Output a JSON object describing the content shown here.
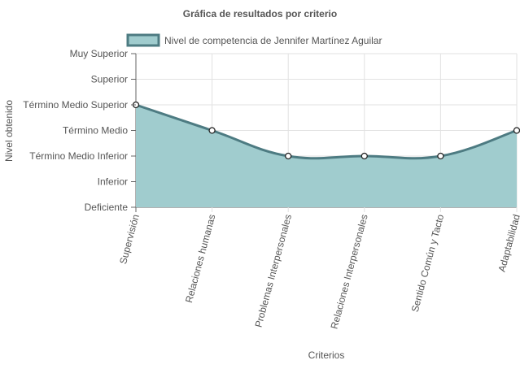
{
  "chart_data": {
    "type": "area",
    "title": "Gráfica de resultados por criterio",
    "xlabel": "Criterios",
    "ylabel": "Nivel obtenido",
    "categories": [
      "Supervisión",
      "Relaciones humanas",
      "Problemas Interpersonales",
      "Relaciones Interpersonales",
      "Sentido Común y Tacto",
      "Adaptabilidad"
    ],
    "y_levels": [
      "Deficiente",
      "Inferior",
      "Término Medio Inferior",
      "Término Medio",
      "Término Medio Superior",
      "Superior",
      "Muy Superior"
    ],
    "series": [
      {
        "name": "Nivel de competencia de Jennifer Martínez Aguilar",
        "values": [
          5,
          4,
          3,
          3,
          3,
          4
        ],
        "value_labels": [
          "Término Medio Superior",
          "Término Medio",
          "Término Medio Inferior",
          "Término Medio Inferior",
          "Término Medio Inferior",
          "Término Medio"
        ],
        "fill_color": "#a0ccce",
        "line_color": "#4d7b82"
      }
    ],
    "ylim": [
      1,
      7
    ],
    "grid": true,
    "legend_position": "top",
    "curve": "smooth"
  },
  "colors": {
    "grid": "#e2e2e2",
    "axis": "#666666",
    "text": "#555555",
    "fill": "#a0ccce",
    "line": "#4d7b82",
    "point_fill": "#ffffff"
  }
}
